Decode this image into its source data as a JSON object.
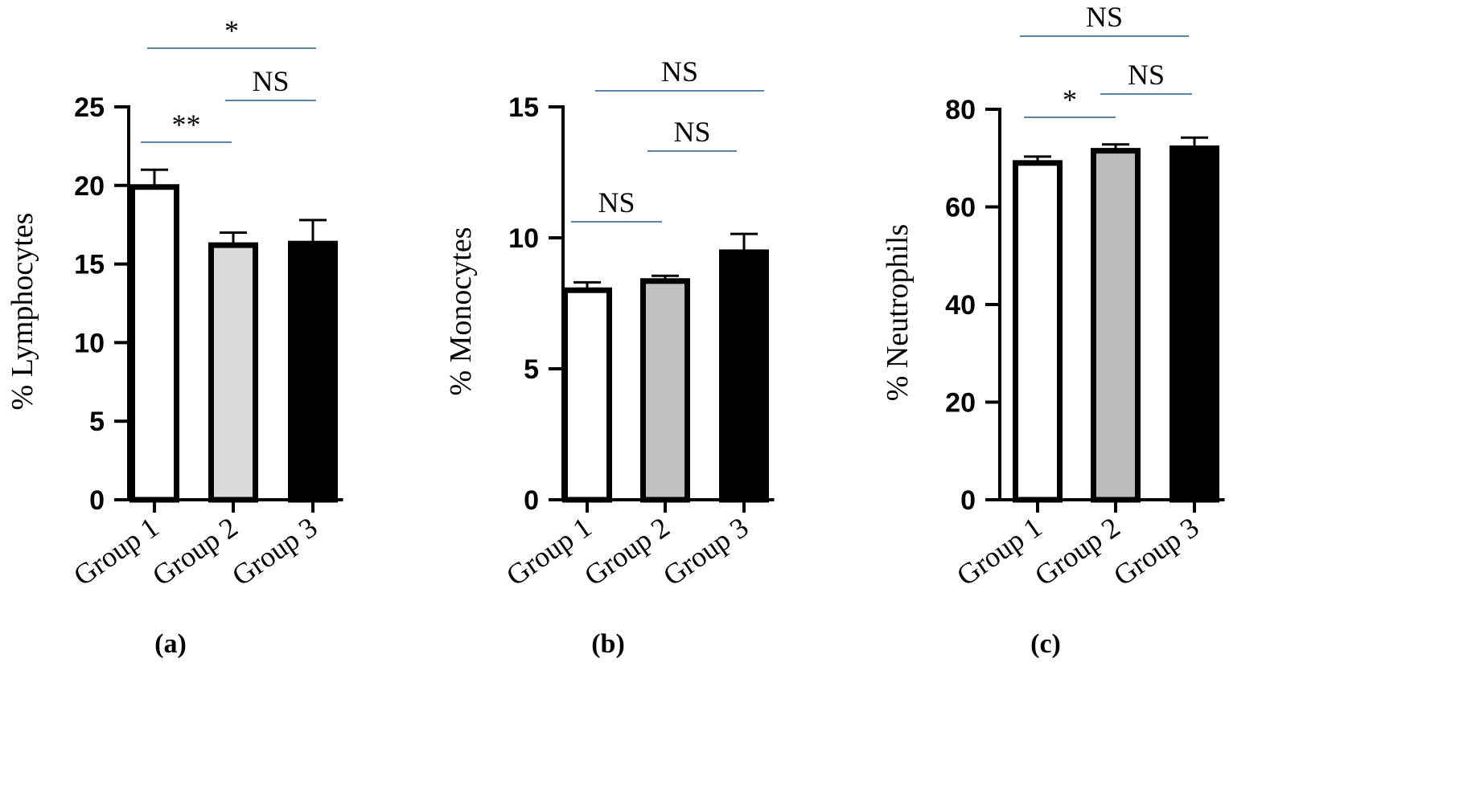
{
  "chart_data": [
    {
      "type": "bar",
      "panel_label": "(a)",
      "ylabel": "% Lymphocytes",
      "categories": [
        "Group 1",
        "Group 2",
        "Group 3"
      ],
      "values": [
        19.9,
        16.2,
        16.3
      ],
      "errors": [
        1.1,
        0.8,
        1.5
      ],
      "bar_fills": [
        "#ffffff",
        "#d9d9d9",
        "#000000"
      ],
      "ylim": [
        0,
        25
      ],
      "yticks": [
        0,
        5,
        10,
        15,
        20,
        25
      ],
      "ytick_labels": [
        "0",
        "5",
        "10",
        "15",
        "20",
        "25"
      ],
      "comparisons": [
        {
          "from": 0,
          "to": 1,
          "label": "**"
        },
        {
          "from": 1,
          "to": 2,
          "label": "NS"
        },
        {
          "from": 0,
          "to": 2,
          "label": "*"
        }
      ]
    },
    {
      "type": "bar",
      "panel_label": "(b)",
      "ylabel": "% Monocytes",
      "categories": [
        "Group 1",
        "Group 2",
        "Group 3"
      ],
      "values": [
        8.0,
        8.35,
        9.45
      ],
      "errors": [
        0.3,
        0.2,
        0.7
      ],
      "bar_fills": [
        "#ffffff",
        "#c0c0c0",
        "#000000"
      ],
      "ylim": [
        0,
        15
      ],
      "yticks": [
        0,
        5,
        10,
        15
      ],
      "ytick_labels": [
        "0",
        "5",
        "10",
        "15"
      ],
      "comparisons": [
        {
          "from": 0,
          "to": 1,
          "label": "NS"
        },
        {
          "from": 1,
          "to": 2,
          "label": "NS"
        },
        {
          "from": 0,
          "to": 2,
          "label": "NS"
        }
      ]
    },
    {
      "type": "bar",
      "panel_label": "(c)",
      "ylabel": "% Neutrophils",
      "categories": [
        "Group 1",
        "Group 2",
        "Group 3"
      ],
      "values": [
        69.0,
        71.5,
        72.0
      ],
      "errors": [
        1.3,
        1.3,
        2.2
      ],
      "bar_fills": [
        "#ffffff",
        "#bdbdbd",
        "#000000"
      ],
      "ylim": [
        0,
        80
      ],
      "yticks": [
        0,
        20,
        40,
        60,
        80
      ],
      "ytick_labels": [
        "0",
        "20",
        "40",
        "60",
        "80"
      ],
      "comparisons": [
        {
          "from": 0,
          "to": 1,
          "label": "*"
        },
        {
          "from": 1,
          "to": 2,
          "label": "NS"
        },
        {
          "from": 0,
          "to": 2,
          "label": "NS"
        }
      ]
    }
  ],
  "colors": {
    "axis": "#000000",
    "bracket": "#5b84a6",
    "bar_outline": "#000000"
  }
}
